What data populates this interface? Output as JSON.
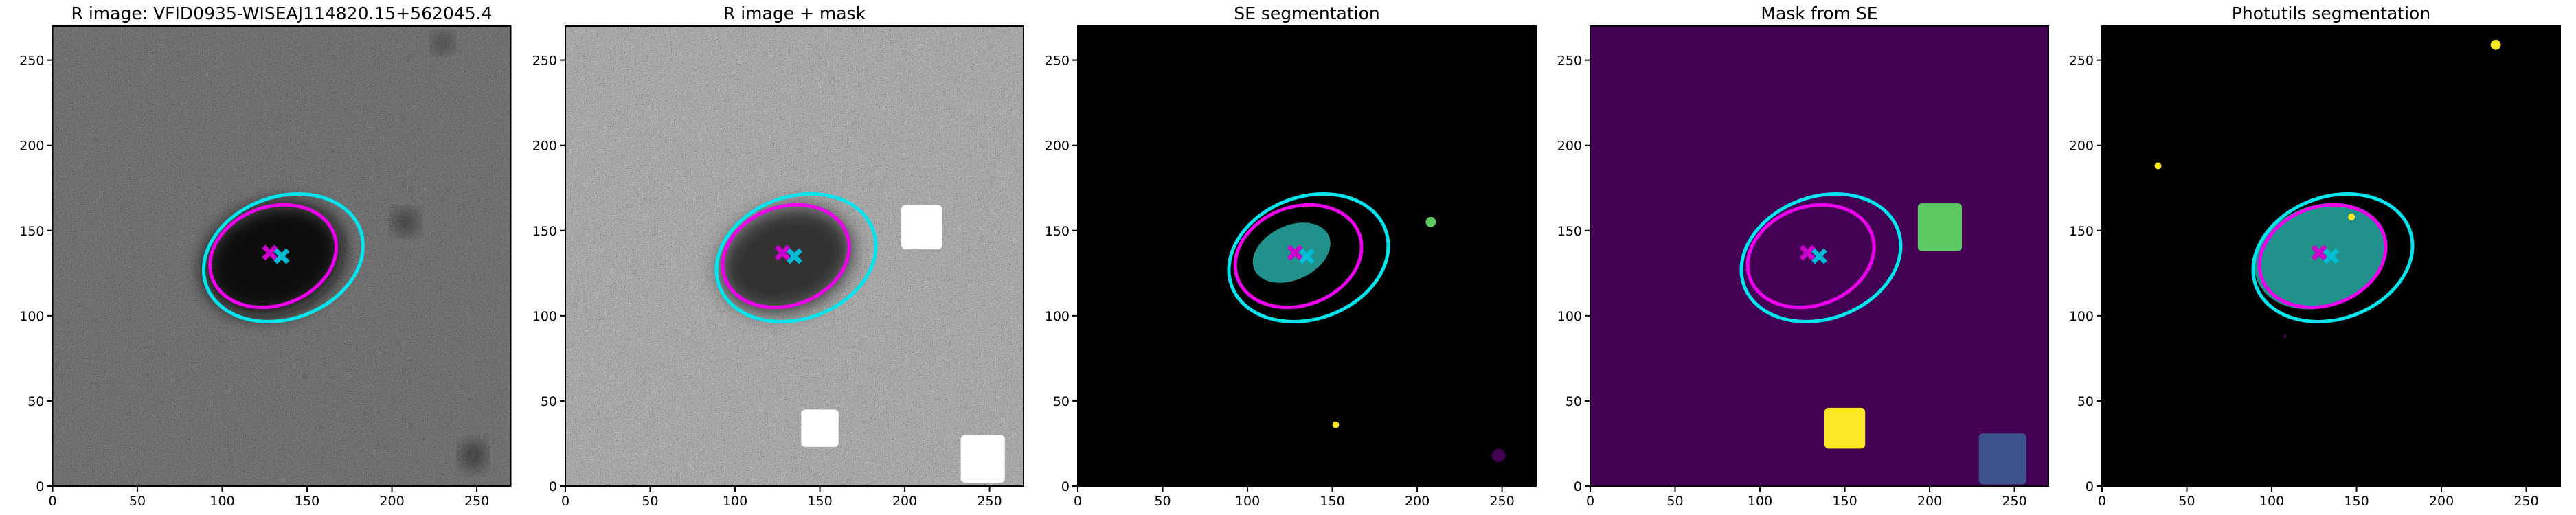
{
  "chart_data": [
    {
      "type": "image",
      "title": "R image: VFID0935-WISEAJ114820.15+562045.4",
      "background": "#5a5a5a",
      "noise": true,
      "xlim": [
        0,
        270
      ],
      "ylim": [
        0,
        270
      ],
      "xticks": [
        0,
        50,
        100,
        150,
        200,
        250
      ],
      "yticks": [
        0,
        50,
        100,
        150,
        200,
        250
      ],
      "regions": [
        {
          "shape": "ellipse",
          "cx": 130,
          "cy": 133,
          "rx": 32,
          "ry": 42,
          "angle": 110,
          "color": "#111111",
          "blur": true
        },
        {
          "shape": "ellipse",
          "cx": 208,
          "cy": 155,
          "rx": 5,
          "ry": 5,
          "angle": 0,
          "color": "#111111",
          "blur": true
        },
        {
          "shape": "ellipse",
          "cx": 248,
          "cy": 18,
          "rx": 5,
          "ry": 6,
          "angle": 0,
          "color": "#111111",
          "blur": true
        },
        {
          "shape": "ellipse",
          "cx": 230,
          "cy": 260,
          "rx": 4,
          "ry": 4,
          "angle": 0,
          "color": "#111111",
          "blur": true
        }
      ],
      "ellipses": [
        {
          "cx": 136,
          "cy": 134,
          "rx": 36,
          "ry": 48,
          "angle": 110,
          "color": "#00e5ee"
        },
        {
          "cx": 130,
          "cy": 135,
          "rx": 29,
          "ry": 38,
          "angle": 110,
          "color": "#ee00ee"
        }
      ],
      "markers": [
        {
          "x": 128,
          "y": 137,
          "color": "#cc00cc"
        },
        {
          "x": 135,
          "y": 135,
          "color": "#00bcd4"
        }
      ]
    },
    {
      "type": "image",
      "title": "R image + mask",
      "background": "#8a8a8a",
      "noise": true,
      "xlim": [
        0,
        270
      ],
      "ylim": [
        0,
        270
      ],
      "xticks": [
        0,
        50,
        100,
        150,
        200,
        250
      ],
      "yticks": [
        0,
        50,
        100,
        150,
        200,
        250
      ],
      "regions": [
        {
          "shape": "ellipse",
          "cx": 130,
          "cy": 133,
          "rx": 30,
          "ry": 40,
          "angle": 110,
          "color": "#333333",
          "blur": true
        },
        {
          "shape": "rect",
          "cx": 210,
          "cy": 152,
          "rx": 12,
          "ry": 13,
          "angle": 0,
          "color": "#ffffff",
          "blur": false
        },
        {
          "shape": "rect",
          "cx": 150,
          "cy": 34,
          "rx": 11,
          "ry": 11,
          "angle": 0,
          "color": "#ffffff",
          "blur": false
        },
        {
          "shape": "rect",
          "cx": 246,
          "cy": 16,
          "rx": 13,
          "ry": 14,
          "angle": 0,
          "color": "#ffffff",
          "blur": false
        }
      ],
      "ellipses": [
        {
          "cx": 136,
          "cy": 134,
          "rx": 36,
          "ry": 48,
          "angle": 110,
          "color": "#00e5ee"
        },
        {
          "cx": 130,
          "cy": 135,
          "rx": 29,
          "ry": 38,
          "angle": 110,
          "color": "#ee00ee"
        }
      ],
      "markers": [
        {
          "x": 128,
          "y": 137,
          "color": "#cc00cc"
        },
        {
          "x": 135,
          "y": 135,
          "color": "#00bcd4"
        }
      ]
    },
    {
      "type": "image",
      "title": "SE segmentation",
      "background": "#000000",
      "noise": false,
      "xlim": [
        0,
        270
      ],
      "ylim": [
        0,
        270
      ],
      "xticks": [
        0,
        50,
        100,
        150,
        200,
        250
      ],
      "yticks": [
        0,
        50,
        100,
        150,
        200,
        250
      ],
      "regions": [
        {
          "shape": "ellipse",
          "cx": 126,
          "cy": 137,
          "rx": 16,
          "ry": 24,
          "angle": 115,
          "color": "#21918c",
          "blur": false
        },
        {
          "shape": "ellipse",
          "cx": 208,
          "cy": 155,
          "rx": 3,
          "ry": 3,
          "angle": 0,
          "color": "#5ec962",
          "blur": false
        },
        {
          "shape": "ellipse",
          "cx": 152,
          "cy": 36,
          "rx": 2,
          "ry": 2,
          "angle": 0,
          "color": "#fde725",
          "blur": false
        },
        {
          "shape": "ellipse",
          "cx": 248,
          "cy": 18,
          "rx": 4,
          "ry": 4,
          "angle": 0,
          "color": "#440154",
          "blur": false
        }
      ],
      "ellipses": [
        {
          "cx": 136,
          "cy": 134,
          "rx": 36,
          "ry": 48,
          "angle": 110,
          "color": "#00e5ee"
        },
        {
          "cx": 130,
          "cy": 135,
          "rx": 29,
          "ry": 38,
          "angle": 110,
          "color": "#ee00ee"
        }
      ],
      "markers": [
        {
          "x": 128,
          "y": 137,
          "color": "#cc00cc"
        },
        {
          "x": 135,
          "y": 135,
          "color": "#00bcd4"
        }
      ]
    },
    {
      "type": "image",
      "title": "Mask from SE",
      "background": "#440154",
      "noise": false,
      "xlim": [
        0,
        270
      ],
      "ylim": [
        0,
        270
      ],
      "xticks": [
        0,
        50,
        100,
        150,
        200,
        250
      ],
      "yticks": [
        0,
        50,
        100,
        150,
        200,
        250
      ],
      "regions": [
        {
          "shape": "rect",
          "cx": 206,
          "cy": 152,
          "rx": 13,
          "ry": 14,
          "angle": 0,
          "color": "#5ec962",
          "blur": false
        },
        {
          "shape": "rect",
          "cx": 150,
          "cy": 34,
          "rx": 12,
          "ry": 12,
          "angle": 0,
          "color": "#fde725",
          "blur": false
        },
        {
          "shape": "rect",
          "cx": 243,
          "cy": 16,
          "rx": 14,
          "ry": 15,
          "angle": 0,
          "color": "#3b528b",
          "blur": false
        }
      ],
      "ellipses": [
        {
          "cx": 136,
          "cy": 134,
          "rx": 36,
          "ry": 48,
          "angle": 110,
          "color": "#00e5ee"
        },
        {
          "cx": 130,
          "cy": 135,
          "rx": 29,
          "ry": 38,
          "angle": 110,
          "color": "#ee00ee"
        }
      ],
      "markers": [
        {
          "x": 128,
          "y": 137,
          "color": "#cc00cc"
        },
        {
          "x": 135,
          "y": 135,
          "color": "#00bcd4"
        }
      ]
    },
    {
      "type": "image",
      "title": "Photutils segmentation",
      "background": "#000000",
      "noise": false,
      "xlim": [
        0,
        270
      ],
      "ylim": [
        0,
        270
      ],
      "xticks": [
        0,
        50,
        100,
        150,
        200,
        250
      ],
      "yticks": [
        0,
        50,
        100,
        150,
        200,
        250
      ],
      "regions": [
        {
          "shape": "ellipse",
          "cx": 129,
          "cy": 135,
          "rx": 30,
          "ry": 40,
          "angle": 110,
          "color": "#21918c",
          "blur": false
        },
        {
          "shape": "ellipse",
          "cx": 232,
          "cy": 259,
          "rx": 3,
          "ry": 3,
          "angle": 0,
          "color": "#fde725",
          "blur": false
        },
        {
          "shape": "ellipse",
          "cx": 33,
          "cy": 188,
          "rx": 2,
          "ry": 2,
          "angle": 0,
          "color": "#fde725",
          "blur": false
        },
        {
          "shape": "ellipse",
          "cx": 147,
          "cy": 158,
          "rx": 2,
          "ry": 2,
          "angle": 0,
          "color": "#fde725",
          "blur": false
        },
        {
          "shape": "ellipse",
          "cx": 108,
          "cy": 88,
          "rx": 1,
          "ry": 1,
          "angle": 0,
          "color": "#440154",
          "blur": false
        }
      ],
      "ellipses": [
        {
          "cx": 136,
          "cy": 134,
          "rx": 36,
          "ry": 48,
          "angle": 110,
          "color": "#00e5ee"
        },
        {
          "cx": 130,
          "cy": 135,
          "rx": 29,
          "ry": 38,
          "angle": 110,
          "color": "#ee00ee"
        }
      ],
      "markers": [
        {
          "x": 128,
          "y": 137,
          "color": "#cc00cc"
        },
        {
          "x": 135,
          "y": 135,
          "color": "#00bcd4"
        }
      ]
    }
  ]
}
